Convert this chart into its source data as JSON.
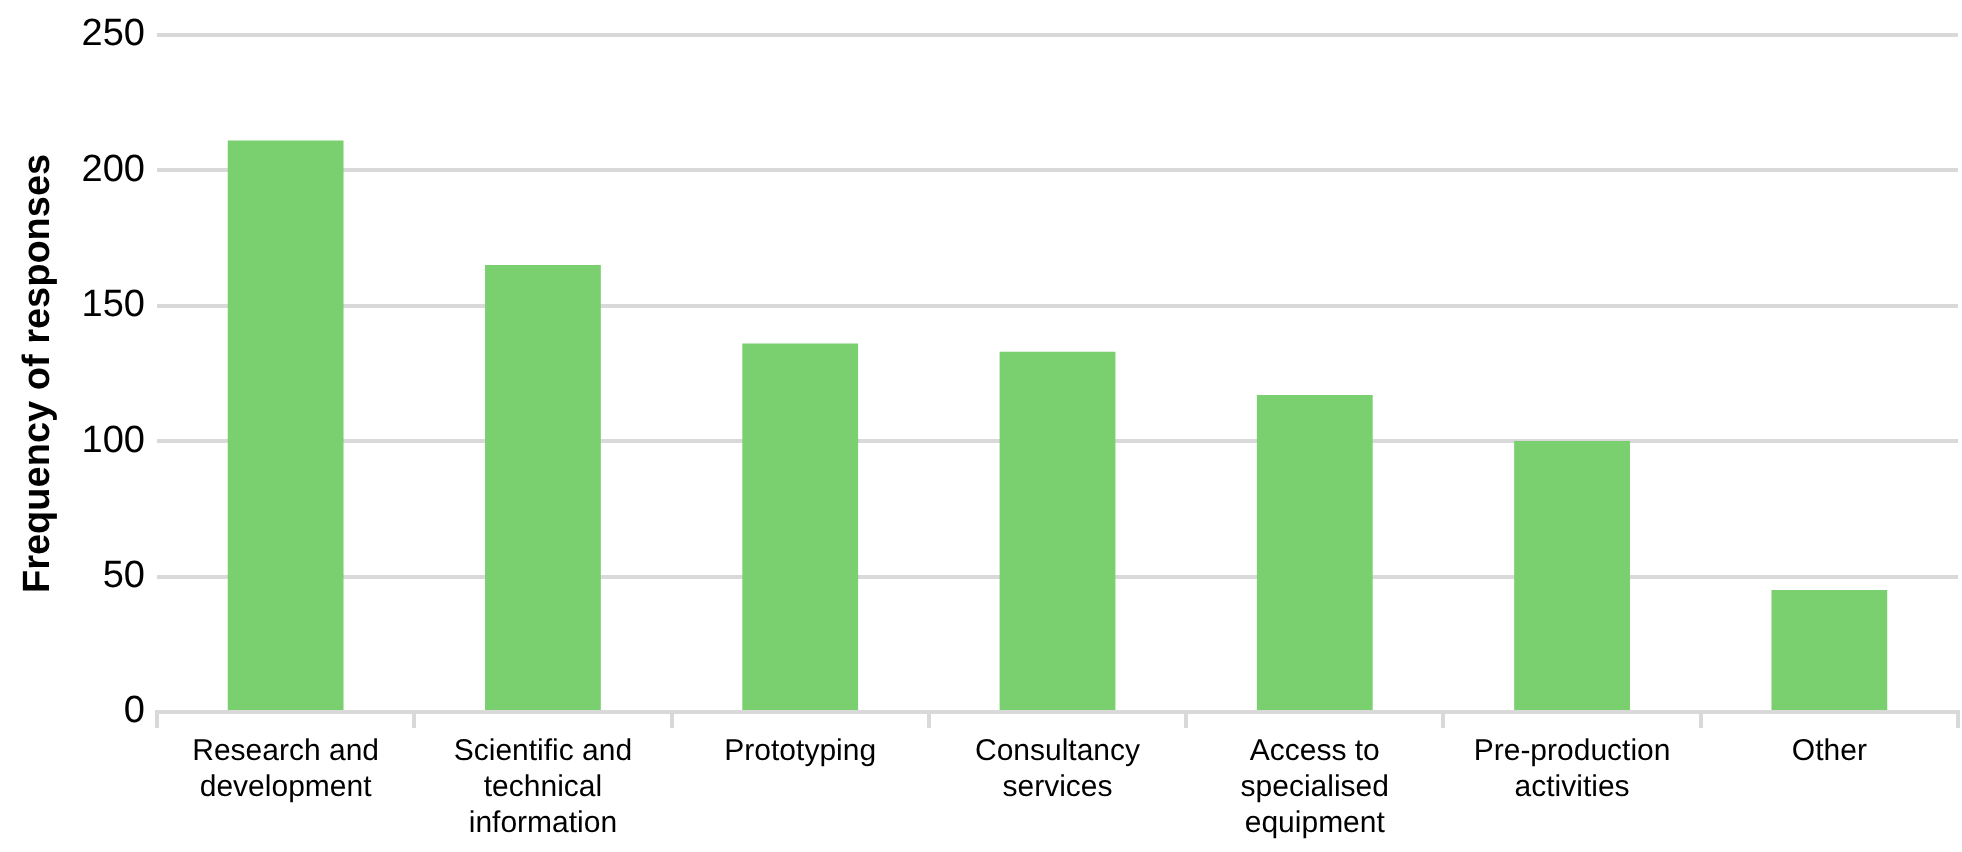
{
  "chart_data": {
    "type": "bar",
    "ylabel": "Frequency of responses",
    "categories": [
      "Research and development",
      "Scientific and technical information",
      "Prototyping",
      "Consultancy services",
      "Access to specialised equipment",
      "Pre-production activities",
      "Other"
    ],
    "values": [
      211,
      165,
      136,
      133,
      117,
      100,
      45
    ],
    "color": "#7acf6e",
    "ylim": [
      0,
      250
    ],
    "yticks": [
      0,
      50,
      100,
      150,
      200,
      250
    ],
    "grid": "y",
    "legend": false
  }
}
